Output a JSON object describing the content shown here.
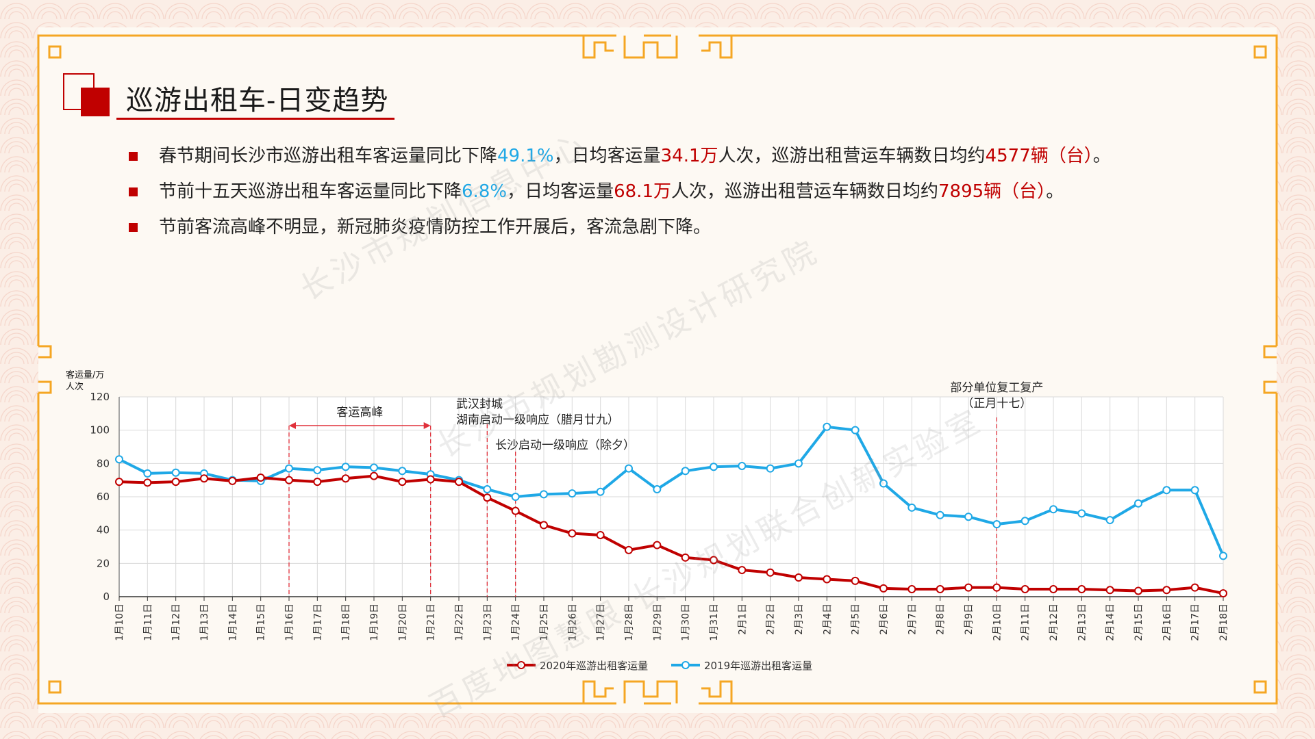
{
  "page_title": "巡游出租车-日变趋势",
  "bullets": [
    {
      "segments": [
        {
          "text": "春节期间长沙市巡游出租车客运量同比下降",
          "color": "default"
        },
        {
          "text": "49.1%",
          "color": "blue"
        },
        {
          "text": "，日均客运量",
          "color": "default"
        },
        {
          "text": "34.1万",
          "color": "red"
        },
        {
          "text": "人次，巡游出租营运车辆数日均约",
          "color": "default"
        },
        {
          "text": "4577辆（台）",
          "color": "red"
        },
        {
          "text": "。",
          "color": "default"
        }
      ]
    },
    {
      "segments": [
        {
          "text": "节前十五天巡游出租车客运量同比下降",
          "color": "default"
        },
        {
          "text": "6.8%",
          "color": "blue"
        },
        {
          "text": "，日均客运量",
          "color": "default"
        },
        {
          "text": "68.1万",
          "color": "red"
        },
        {
          "text": "人次，巡游出租营运车辆数日均约",
          "color": "default"
        },
        {
          "text": "7895辆（台）",
          "color": "red"
        },
        {
          "text": "。",
          "color": "default"
        }
      ]
    },
    {
      "segments": [
        {
          "text": "节前客流高峰不明显，新冠肺炎疫情防控工作开展后，客流急剧下降。",
          "color": "default"
        }
      ]
    }
  ],
  "watermarks": [
    "长沙市规划信息中心",
    "长沙市规划勘测设计研究院",
    "百度地图慧眼-长沙规划联合创新实验室"
  ],
  "colors": {
    "accent_red": "#c00000",
    "blue": "#1fa8e6",
    "series_2020": "#c00000",
    "series_2019": "#1fa8e6",
    "frame": "#f5a623"
  },
  "chart_data": {
    "type": "line",
    "ylabel": "客运量/万人次",
    "ylim": [
      0,
      120
    ],
    "yticks": [
      0,
      20,
      40,
      60,
      80,
      100,
      120
    ],
    "grid": true,
    "legend_position": "bottom",
    "categories": [
      "1月10日",
      "1月11日",
      "1月12日",
      "1月13日",
      "1月14日",
      "1月15日",
      "1月16日",
      "1月17日",
      "1月18日",
      "1月19日",
      "1月20日",
      "1月21日",
      "1月22日",
      "1月23日",
      "1月24日",
      "1月25日",
      "1月26日",
      "1月27日",
      "1月28日",
      "1月29日",
      "1月30日",
      "1月31日",
      "2月1日",
      "2月2日",
      "2月3日",
      "2月4日",
      "2月5日",
      "2月6日",
      "2月7日",
      "2月8日",
      "2月9日",
      "2月10日",
      "2月11日",
      "2月12日",
      "2月13日",
      "2月14日",
      "2月15日",
      "2月16日",
      "2月17日",
      "2月18日"
    ],
    "series": [
      {
        "name": "2020年巡游出租客运量",
        "color": "#c00000",
        "values": [
          69,
          68.5,
          69,
          71,
          69.5,
          71.5,
          70,
          69,
          71,
          72.5,
          69,
          70.5,
          69,
          59.5,
          51.5,
          43,
          38,
          37,
          28,
          31,
          23.5,
          22,
          16,
          14.5,
          11.5,
          10.5,
          9.5,
          5,
          4.5,
          4.5,
          5.5,
          5.5,
          4.5,
          4.5,
          4.5,
          4,
          3.5,
          4,
          5.5,
          2
        ]
      },
      {
        "name": "2019年巡游出租客运量",
        "color": "#1fa8e6",
        "values": [
          82.5,
          74,
          74.5,
          74,
          70,
          69.5,
          77,
          76,
          78,
          77.5,
          75.5,
          73.5,
          70,
          64.5,
          60,
          61.5,
          62,
          63,
          77,
          64.5,
          75.5,
          78,
          78.5,
          77,
          80,
          102,
          100,
          68,
          53.5,
          49,
          48,
          43.5,
          45.5,
          52.5,
          50,
          46,
          56,
          64,
          64,
          24.5
        ]
      }
    ],
    "annotations": [
      {
        "type": "range",
        "from": "1月16日",
        "to": "1月21日",
        "label": "客运高峰"
      },
      {
        "type": "vline",
        "at": "1月23日",
        "label": "武汉封城\n湖南启动一级响应（腊月廿九）"
      },
      {
        "type": "vline",
        "at": "1月24日",
        "label": "长沙启动一级响应（除夕）"
      },
      {
        "type": "vline",
        "at": "2月10日",
        "label": "部分单位复工复产\n（正月十七）"
      }
    ]
  }
}
